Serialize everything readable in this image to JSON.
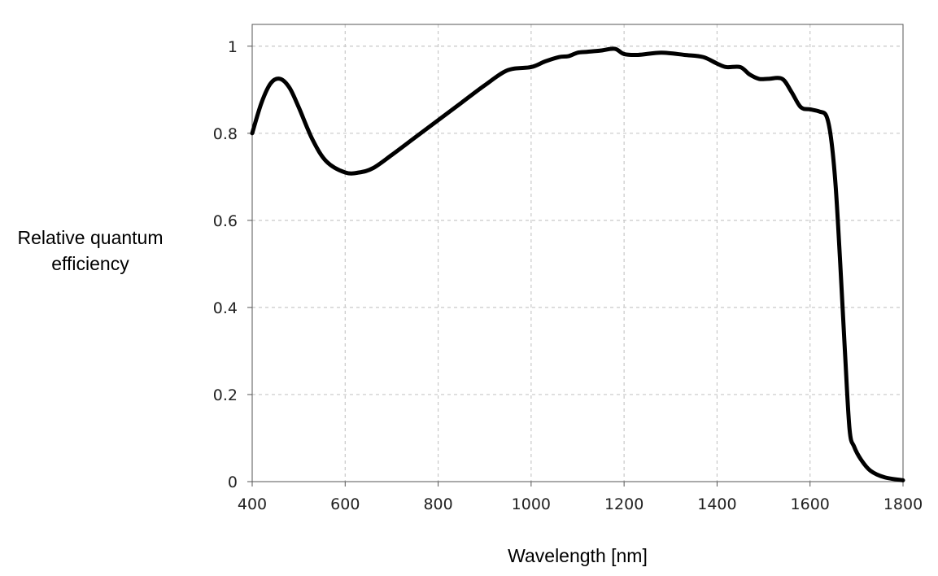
{
  "chart_data": {
    "type": "line",
    "title": "",
    "xlabel": "Wavelength [nm]",
    "ylabel": {
      "line1": "Relative quantum",
      "line2": "efficiency"
    },
    "xlim": [
      400,
      1800
    ],
    "ylim": [
      0,
      1.05
    ],
    "x_ticks": [
      400,
      600,
      800,
      1000,
      1200,
      1400,
      1600,
      1800
    ],
    "y_ticks": [
      0,
      0.2,
      0.4,
      0.6,
      0.8,
      1
    ],
    "x_tick_labels": [
      "400",
      "600",
      "800",
      "1000",
      "1200",
      "1400",
      "1600",
      "1800"
    ],
    "y_tick_labels": [
      "0",
      "0.2",
      "0.4",
      "0.6",
      "0.8",
      "1"
    ],
    "grid": true,
    "line_color": "#000000",
    "grid_color": "#c8c8c8",
    "series": [
      {
        "x": [
          400,
          420,
          440,
          460,
          480,
          500,
          530,
          560,
          600,
          630,
          660,
          700,
          750,
          800,
          850,
          900,
          950,
          1000,
          1030,
          1060,
          1080,
          1100,
          1120,
          1150,
          1180,
          1200,
          1230,
          1280,
          1330,
          1370,
          1400,
          1420,
          1450,
          1470,
          1490,
          1510,
          1540,
          1560,
          1580,
          1600,
          1620,
          1635,
          1645,
          1655,
          1665,
          1675,
          1685,
          1695,
          1710,
          1730,
          1760,
          1800
        ],
        "y": [
          0.8,
          0.87,
          0.915,
          0.925,
          0.905,
          0.86,
          0.785,
          0.735,
          0.71,
          0.71,
          0.72,
          0.75,
          0.79,
          0.83,
          0.87,
          0.91,
          0.945,
          0.952,
          0.965,
          0.975,
          0.977,
          0.985,
          0.987,
          0.99,
          0.994,
          0.982,
          0.98,
          0.985,
          0.98,
          0.975,
          0.96,
          0.952,
          0.952,
          0.935,
          0.925,
          0.925,
          0.925,
          0.895,
          0.86,
          0.855,
          0.85,
          0.84,
          0.79,
          0.68,
          0.5,
          0.3,
          0.12,
          0.08,
          0.05,
          0.025,
          0.01,
          0.003
        ]
      }
    ]
  }
}
